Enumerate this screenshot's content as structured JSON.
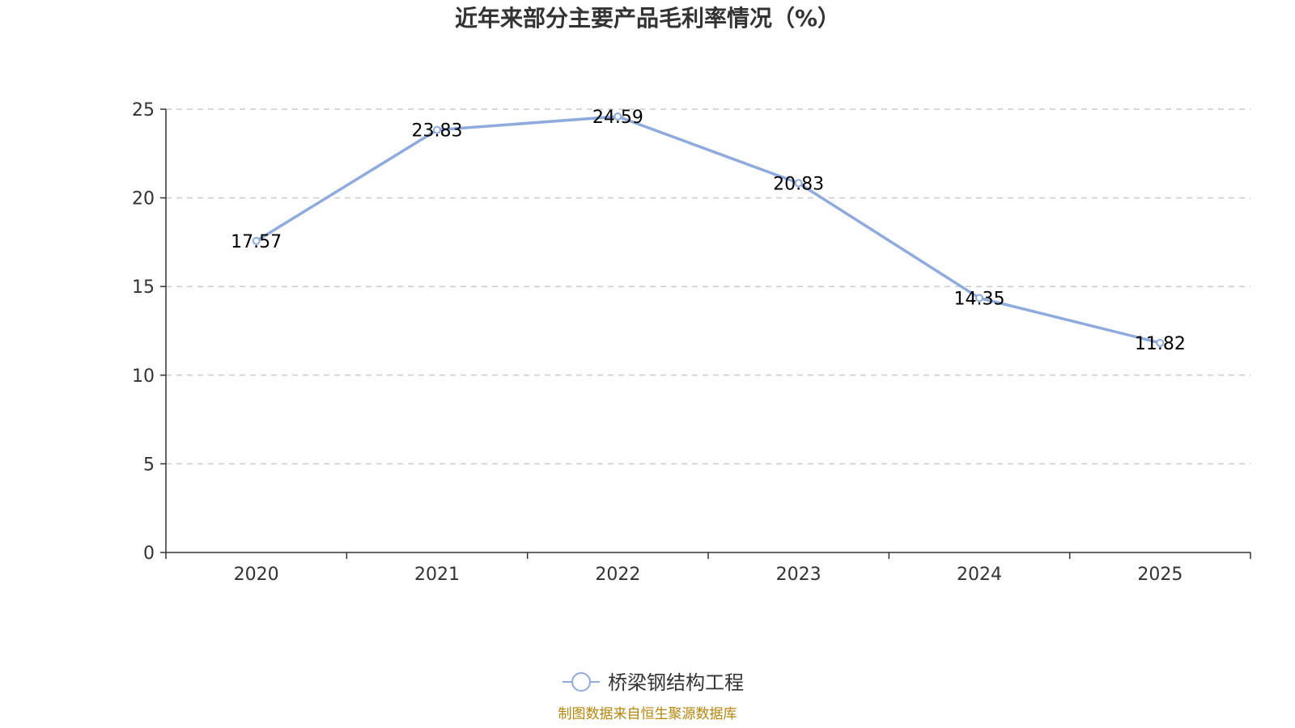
{
  "colors": {
    "series": "#8faadc",
    "axis": "#333333",
    "grid": "#cccccc",
    "source": "#b8860b"
  },
  "chart_data": {
    "type": "line",
    "title": "近年来部分主要产品毛利率情况（%）",
    "categories": [
      "2020",
      "2021",
      "2022",
      "2023",
      "2024",
      "2025"
    ],
    "series": [
      {
        "name": "桥梁钢结构工程",
        "values": [
          17.57,
          23.83,
          24.59,
          20.83,
          14.35,
          11.82
        ],
        "labels": [
          "17.57",
          "23.83",
          "24.59",
          "20.83",
          "14.35",
          "11.82"
        ]
      }
    ],
    "ylim": [
      0,
      25
    ],
    "yticks": [
      "0",
      "5",
      "10",
      "15",
      "20",
      "25"
    ],
    "xlabel": "",
    "ylabel": "",
    "grid": "horizontal-dashed",
    "legend_position": "bottom-center"
  },
  "footer": {
    "source_text": "制图数据来自恒生聚源数据库"
  }
}
